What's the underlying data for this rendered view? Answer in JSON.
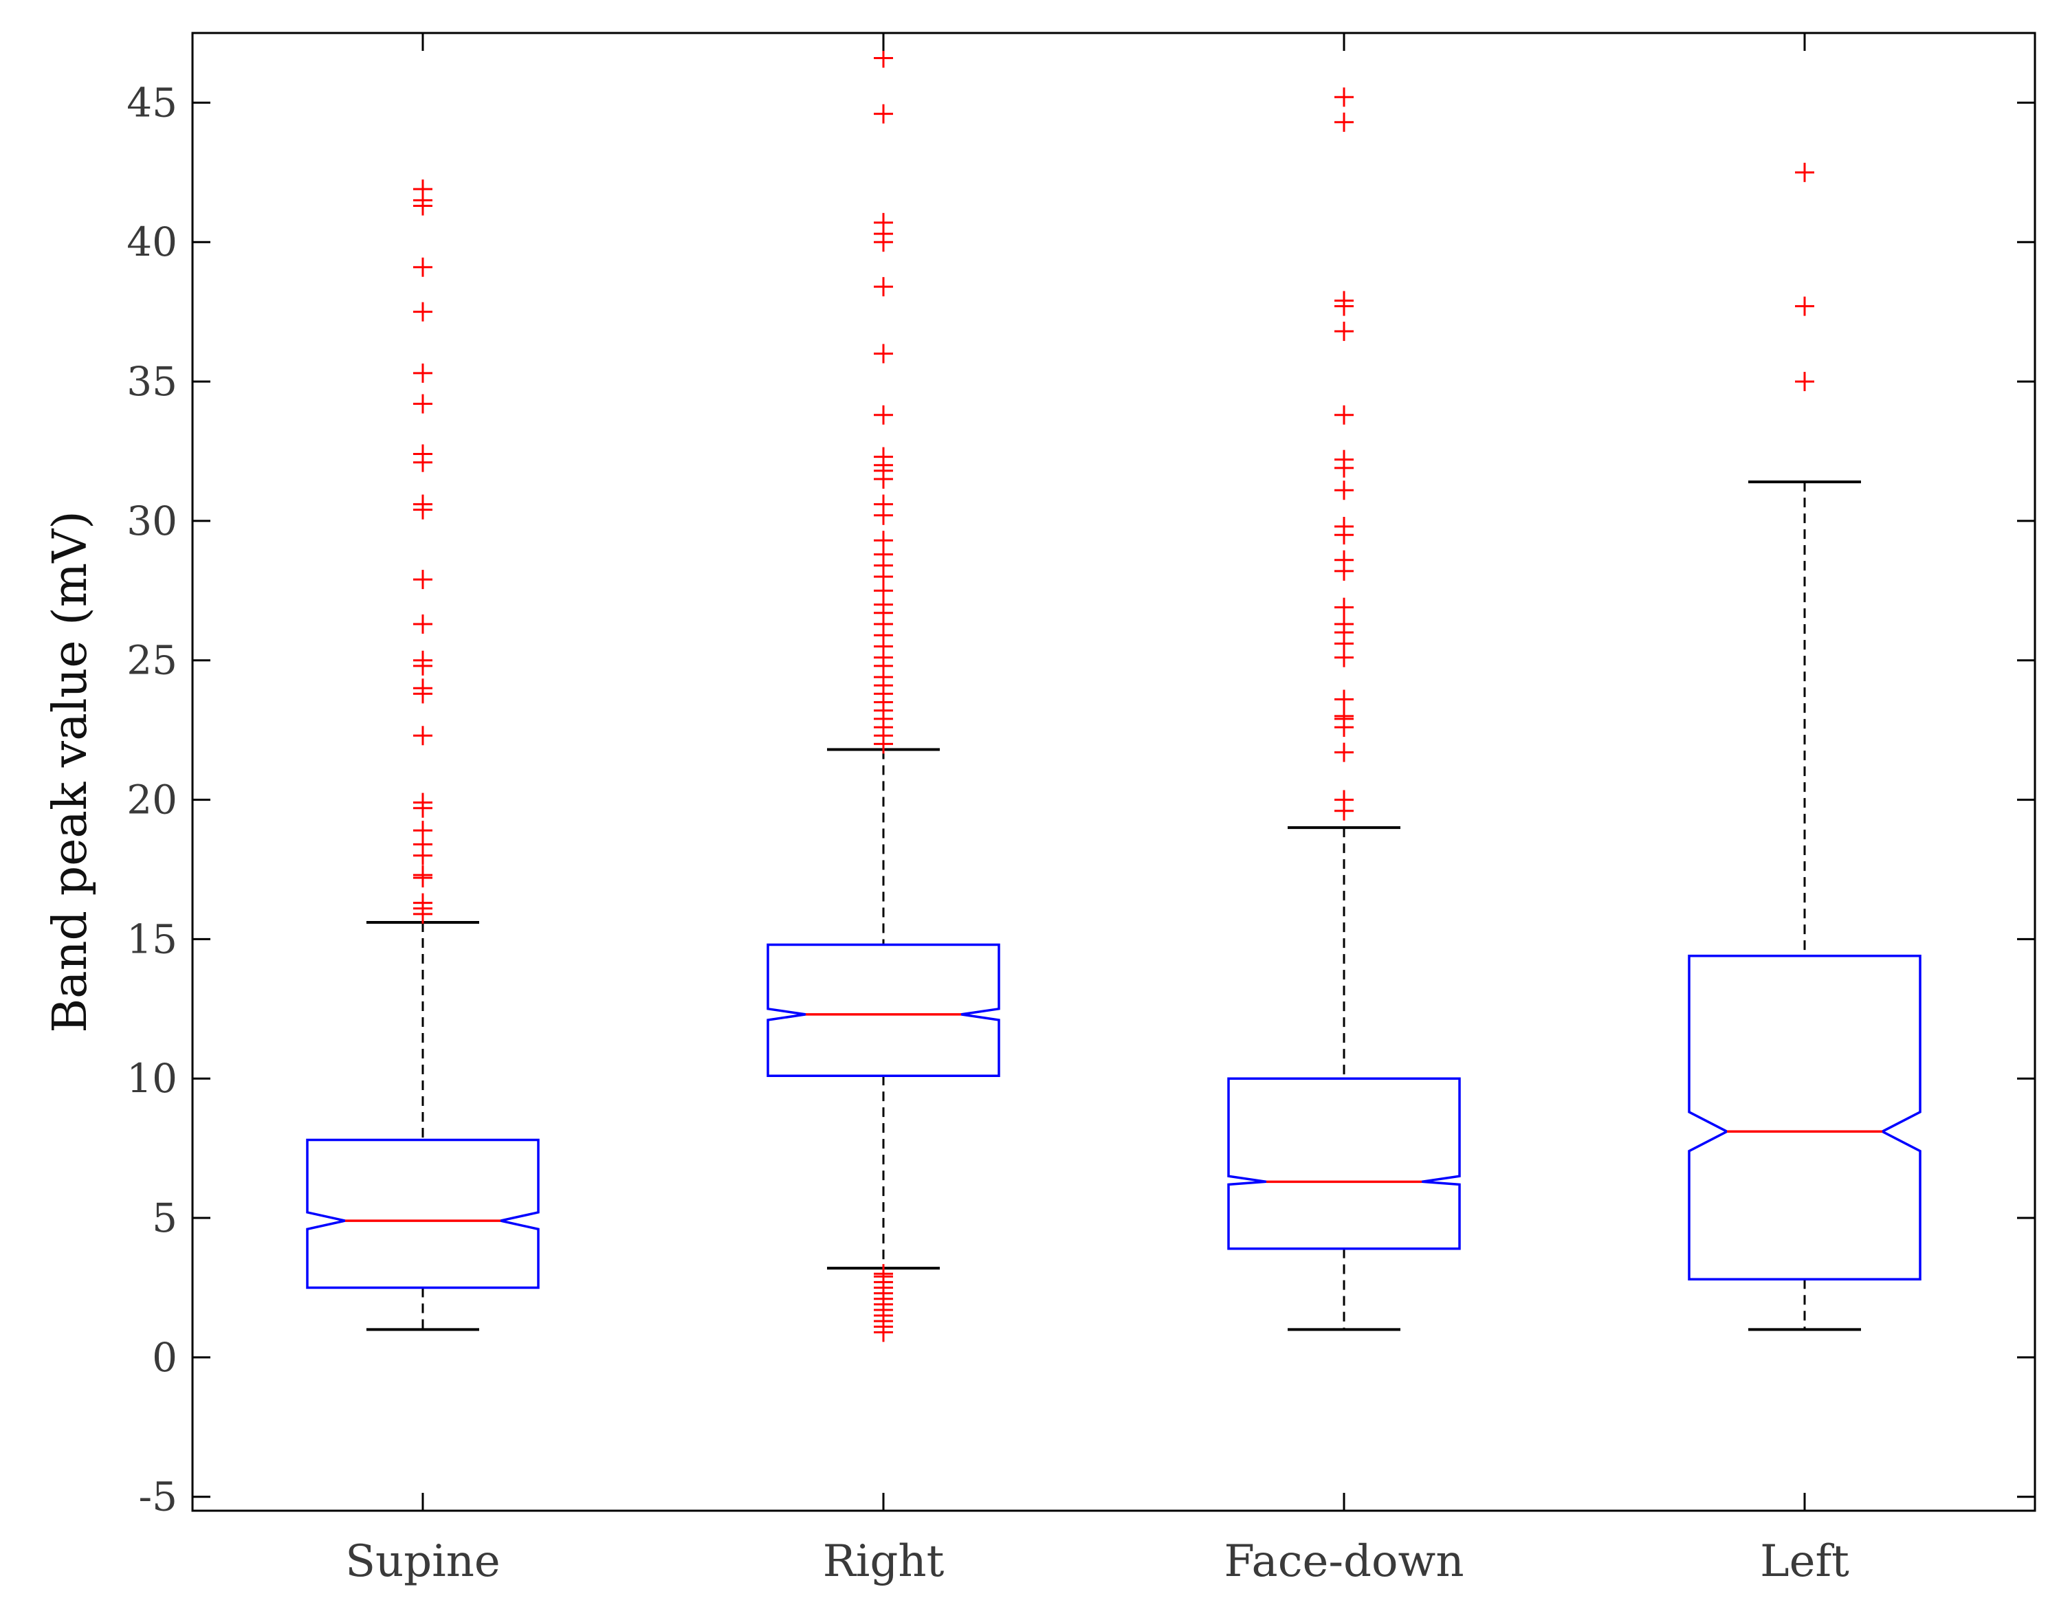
{
  "chart_data": {
    "type": "boxplot",
    "title": "",
    "xlabel": "",
    "ylabel": "Band peak value (mV)",
    "ylim": [
      -5.5,
      47.5
    ],
    "yticks": [
      -5,
      0,
      5,
      10,
      15,
      20,
      25,
      30,
      35,
      40,
      45
    ],
    "ytick_labels": [
      "-5",
      "0",
      "5",
      "10",
      "15",
      "20",
      "25",
      "30",
      "35",
      "40",
      "45"
    ],
    "categories": [
      "Supine",
      "Right",
      "Face-down",
      "Left"
    ],
    "grid": false,
    "notched": true,
    "colors": {
      "box": "#0000ff",
      "median": "#ff0000",
      "whisker": "#000000",
      "outlier": "#ff0000",
      "axis": "#000000"
    },
    "series": [
      {
        "name": "Supine",
        "q1": 2.5,
        "median": 4.9,
        "q3": 7.8,
        "notch_low": 4.6,
        "notch_high": 5.2,
        "whisker_low": 1.0,
        "whisker_high": 15.6,
        "outliers": [
          15.9,
          16.1,
          16.3,
          17.2,
          17.3,
          18.0,
          18.4,
          18.9,
          19.7,
          19.9,
          22.3,
          23.8,
          24.0,
          24.8,
          25.0,
          26.3,
          27.9,
          30.4,
          30.6,
          32.1,
          32.4,
          34.2,
          35.3,
          37.5,
          39.1,
          41.3,
          41.5,
          41.9
        ]
      },
      {
        "name": "Right",
        "q1": 10.1,
        "median": 12.3,
        "q3": 14.8,
        "notch_low": 12.1,
        "notch_high": 12.5,
        "whisker_low": 3.2,
        "whisker_high": 21.8,
        "outliers": [
          0.9,
          1.1,
          1.3,
          1.5,
          1.7,
          1.9,
          2.1,
          2.3,
          2.5,
          2.7,
          2.9,
          3.0,
          22.0,
          22.3,
          22.6,
          22.9,
          23.2,
          23.5,
          23.8,
          24.1,
          24.4,
          24.8,
          25.1,
          25.5,
          25.9,
          26.3,
          26.7,
          27.0,
          27.5,
          28.0,
          28.4,
          28.8,
          29.3,
          30.2,
          30.6,
          31.5,
          31.8,
          32.0,
          32.3,
          33.8,
          36.0,
          38.4,
          40.0,
          40.3,
          40.7,
          44.6,
          46.6
        ]
      },
      {
        "name": "Face-down",
        "q1": 3.9,
        "median": 6.3,
        "q3": 10.0,
        "notch_low": 6.2,
        "notch_high": 6.5,
        "whisker_low": 1.0,
        "whisker_high": 19.0,
        "outliers": [
          19.6,
          20.0,
          21.7,
          22.6,
          22.9,
          23.0,
          23.6,
          25.1,
          25.6,
          26.0,
          26.3,
          26.9,
          28.2,
          28.6,
          29.5,
          29.8,
          31.1,
          31.9,
          32.2,
          33.8,
          36.8,
          37.7,
          37.9,
          44.3,
          45.2
        ]
      },
      {
        "name": "Left",
        "q1": 2.8,
        "median": 8.1,
        "q3": 14.4,
        "notch_low": 7.4,
        "notch_high": 8.8,
        "whisker_low": 1.0,
        "whisker_high": 31.4,
        "outliers": [
          35.0,
          37.7,
          42.5
        ]
      }
    ]
  }
}
